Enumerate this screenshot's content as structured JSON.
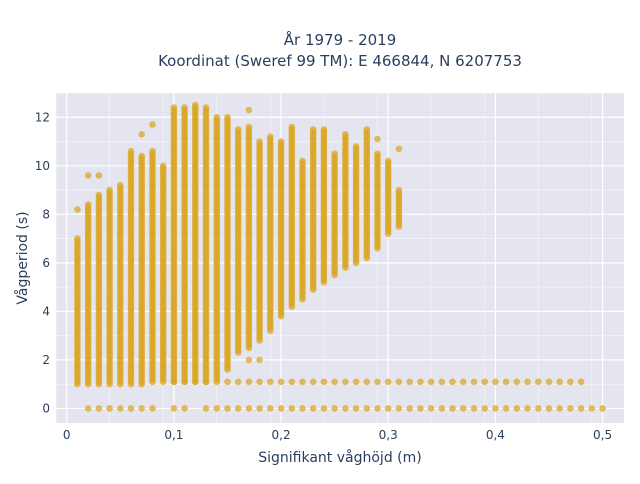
{
  "chart_data": {
    "type": "scatter",
    "title_line1": "År 1979 - 2019",
    "title_line2": "Koordinat (Sweref 99 TM): E 466844, N 6207753",
    "xlabel": "Signifikant våghöjd (m)",
    "ylabel": "Vågperiod (s)",
    "xlim": [
      -0.01,
      0.52
    ],
    "ylim": [
      -0.6,
      13.0
    ],
    "x_ticks": [
      0,
      0.1,
      0.2,
      0.3,
      0.4,
      0.5
    ],
    "x_tick_labels": [
      "0",
      "0,1",
      "0,2",
      "0,3",
      "0,4",
      "0,5"
    ],
    "y_ticks": [
      0,
      2,
      4,
      6,
      8,
      10,
      12
    ],
    "y_tick_labels": [
      "0",
      "2",
      "4",
      "6",
      "8",
      "10",
      "12"
    ],
    "grid": true,
    "marker_color": "#DAA520",
    "plot_bgcolor": "#E5E5F0",
    "x_step": 0.01,
    "columns": [
      {
        "x": 0.01,
        "ymin": 1.0,
        "ymax": 7.0,
        "extra_y": [
          8.2
        ]
      },
      {
        "x": 0.02,
        "ymin": 1.0,
        "ymax": 8.4,
        "extra_y": [
          9.6
        ]
      },
      {
        "x": 0.03,
        "ymin": 1.0,
        "ymax": 8.8,
        "extra_y": [
          9.6
        ]
      },
      {
        "x": 0.04,
        "ymin": 1.0,
        "ymax": 9.0
      },
      {
        "x": 0.05,
        "ymin": 1.0,
        "ymax": 9.2
      },
      {
        "x": 0.06,
        "ymin": 1.0,
        "ymax": 10.6
      },
      {
        "x": 0.07,
        "ymin": 1.0,
        "ymax": 10.4,
        "extra_y": [
          11.3
        ]
      },
      {
        "x": 0.08,
        "ymin": 1.1,
        "ymax": 10.6,
        "extra_y": [
          11.7
        ]
      },
      {
        "x": 0.09,
        "ymin": 1.1,
        "ymax": 10.0
      },
      {
        "x": 0.1,
        "ymin": 1.1,
        "ymax": 12.4
      },
      {
        "x": 0.11,
        "ymin": 1.1,
        "ymax": 12.4
      },
      {
        "x": 0.12,
        "ymin": 1.1,
        "ymax": 12.5
      },
      {
        "x": 0.13,
        "ymin": 1.1,
        "ymax": 12.4
      },
      {
        "x": 0.14,
        "ymin": 1.2,
        "ymax": 12.0
      },
      {
        "x": 0.15,
        "ymin": 1.6,
        "ymax": 12.0
      },
      {
        "x": 0.16,
        "ymin": 2.3,
        "ymax": 11.5
      },
      {
        "x": 0.17,
        "ymin": 2.5,
        "ymax": 11.6,
        "extra_y": [
          12.3,
          2.0
        ]
      },
      {
        "x": 0.18,
        "ymin": 2.8,
        "ymax": 11.0,
        "extra_y": [
          2.0
        ]
      },
      {
        "x": 0.19,
        "ymin": 3.2,
        "ymax": 11.2
      },
      {
        "x": 0.2,
        "ymin": 3.8,
        "ymax": 11.0
      },
      {
        "x": 0.21,
        "ymin": 4.2,
        "ymax": 11.6
      },
      {
        "x": 0.22,
        "ymin": 4.5,
        "ymax": 10.2
      },
      {
        "x": 0.23,
        "ymin": 4.9,
        "ymax": 11.5
      },
      {
        "x": 0.24,
        "ymin": 5.2,
        "ymax": 11.5
      },
      {
        "x": 0.25,
        "ymin": 5.5,
        "ymax": 10.5
      },
      {
        "x": 0.26,
        "ymin": 5.8,
        "ymax": 11.3
      },
      {
        "x": 0.27,
        "ymin": 6.0,
        "ymax": 10.8
      },
      {
        "x": 0.28,
        "ymin": 6.2,
        "ymax": 11.5
      },
      {
        "x": 0.29,
        "ymin": 6.6,
        "ymax": 10.5,
        "extra_y": [
          11.1
        ]
      },
      {
        "x": 0.3,
        "ymin": 7.2,
        "ymax": 10.2
      },
      {
        "x": 0.31,
        "ymin": 7.5,
        "ymax": 9.0,
        "extra_y": [
          10.7
        ]
      }
    ],
    "floor_line": {
      "y": 1.1,
      "x_start": 0.1,
      "x_end": 0.48,
      "x_step": 0.01
    },
    "zero_line": {
      "y": 0,
      "x_values": [
        0.02,
        0.03,
        0.04,
        0.05,
        0.06,
        0.07,
        0.08,
        0.1,
        0.11,
        0.13,
        0.14,
        0.15,
        0.16,
        0.17,
        0.18,
        0.19,
        0.2,
        0.21,
        0.22,
        0.23,
        0.24,
        0.25,
        0.26,
        0.27,
        0.28,
        0.29,
        0.3,
        0.31,
        0.32,
        0.33,
        0.34,
        0.35,
        0.36,
        0.37,
        0.38,
        0.39,
        0.4,
        0.41,
        0.42,
        0.43,
        0.44,
        0.45,
        0.46,
        0.47,
        0.48,
        0.49,
        0.5
      ]
    }
  }
}
